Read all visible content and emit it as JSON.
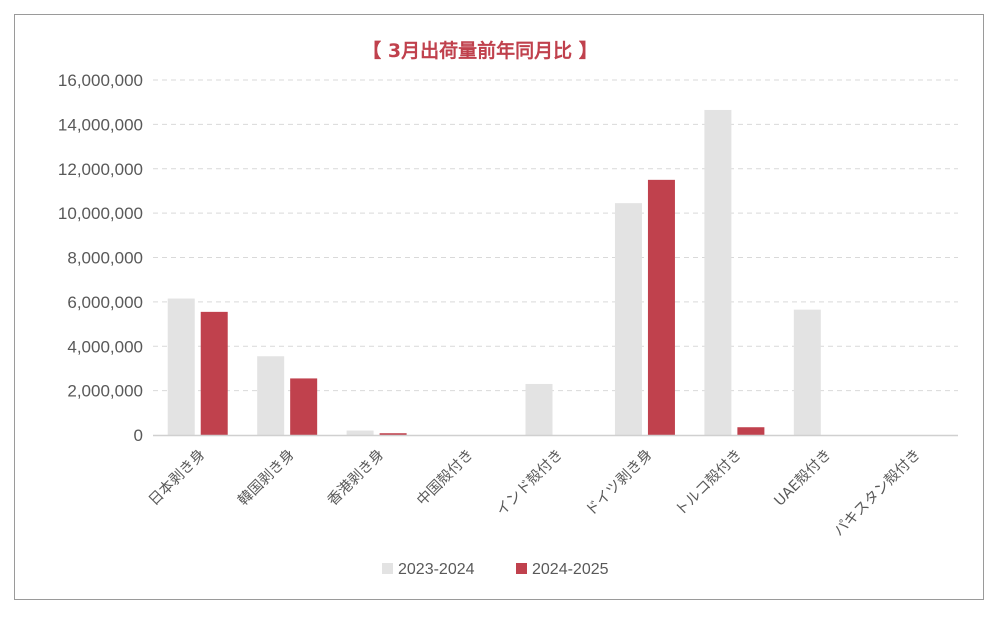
{
  "chart_data": {
    "type": "bar",
    "title": "【 3月出荷量前年同月比 】",
    "categories": [
      "日本剥き身",
      "韓国剥き身",
      "香港剥き身",
      "中国殻付き",
      "インド殻付き",
      "ドイツ剥き身",
      "トルコ殻付き",
      "UAE殻付き",
      "パキスタン殻付き"
    ],
    "series": [
      {
        "name": "2023-2024",
        "color": "#e3e3e3",
        "values": [
          6150000,
          3550000,
          200000,
          0,
          2300000,
          10450000,
          14650000,
          5650000,
          0
        ]
      },
      {
        "name": "2024-2025",
        "color": "#c0414d",
        "values": [
          5550000,
          2550000,
          80000,
          0,
          0,
          11500000,
          350000,
          0,
          0
        ]
      }
    ],
    "ylim": [
      0,
      16000000
    ],
    "yticks": [
      0,
      2000000,
      4000000,
      6000000,
      8000000,
      10000000,
      12000000,
      14000000,
      16000000
    ],
    "ytick_labels": [
      "0",
      "2,000,000",
      "4,000,000",
      "6,000,000",
      "8,000,000",
      "10,000,000",
      "12,000,000",
      "14,000,000",
      "16,000,000"
    ],
    "grid": true,
    "legend": "bottom",
    "colors": {
      "title": "#c0414d",
      "axis_text": "#595959",
      "grid": "#d9d9d9"
    }
  }
}
